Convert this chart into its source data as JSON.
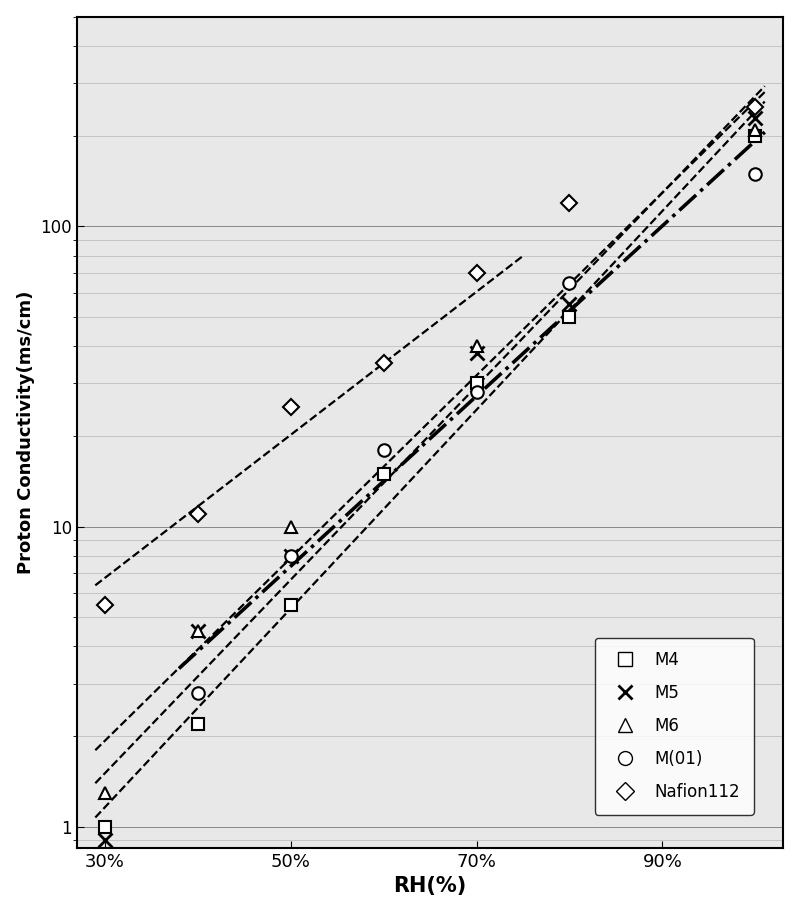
{
  "xlabel": "RH(%)",
  "ylabel": "Proton Conductivity(ms/cm)",
  "xlim": [
    27,
    103
  ],
  "ylim": [
    0.85,
    500
  ],
  "xticks": [
    30,
    50,
    70,
    90
  ],
  "xticklabels": [
    "30%",
    "50%",
    "70%",
    "90%"
  ],
  "M4_x": [
    30,
    40,
    50,
    60,
    70,
    80,
    100
  ],
  "M4_y": [
    1.0,
    2.2,
    5.5,
    15,
    30,
    50,
    200
  ],
  "M5_x": [
    30,
    40,
    50,
    70,
    80,
    100
  ],
  "M5_y": [
    0.9,
    4.5,
    8,
    38,
    55,
    230
  ],
  "M6_x": [
    30,
    40,
    50,
    70,
    100
  ],
  "M6_y": [
    1.3,
    4.5,
    10,
    40,
    210
  ],
  "M01_x": [
    40,
    50,
    60,
    70,
    80,
    100
  ],
  "M01_y": [
    2.8,
    8.0,
    18,
    28,
    65,
    150
  ],
  "Nafion_x": [
    30,
    40,
    50,
    60,
    70,
    80,
    100
  ],
  "Nafion_y": [
    5.5,
    11,
    25,
    35,
    70,
    120,
    250
  ],
  "lw": 1.6,
  "ms": 9,
  "background_color": "#e8e8e8",
  "grid_color": "#b0b0b0"
}
